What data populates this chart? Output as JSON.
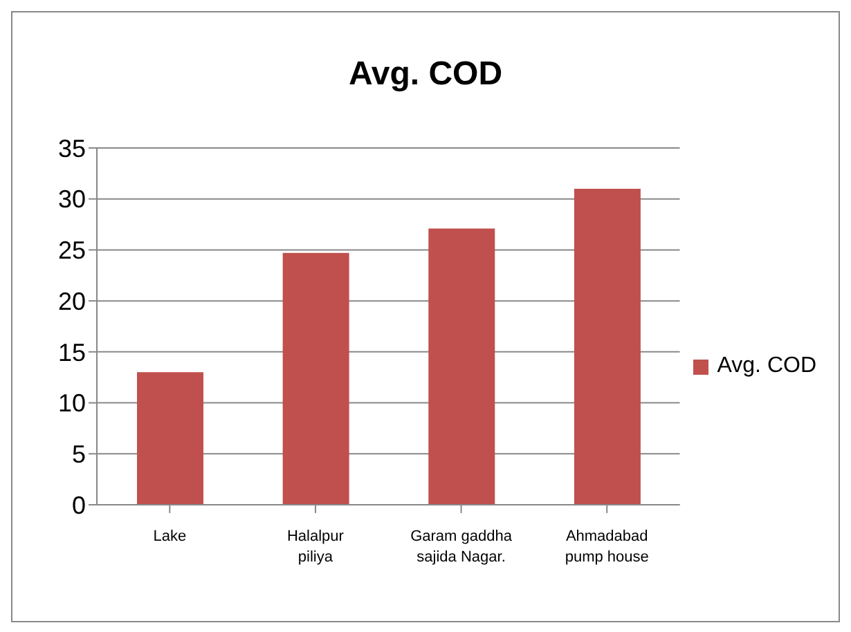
{
  "chart_data": {
    "type": "bar",
    "title": "Avg. COD",
    "categories": [
      "Lake",
      "Halalpur piliya",
      "Garam gaddha sajida Nagar.",
      "Ahmadabad pump house"
    ],
    "series": [
      {
        "name": "Avg. COD",
        "color": "#c0504d",
        "values": [
          13,
          24.7,
          27.1,
          31
        ]
      }
    ],
    "ylim": [
      0,
      35
    ],
    "yticks": [
      0,
      5,
      10,
      15,
      20,
      25,
      30,
      35
    ],
    "grid": "y",
    "legend": "right"
  }
}
